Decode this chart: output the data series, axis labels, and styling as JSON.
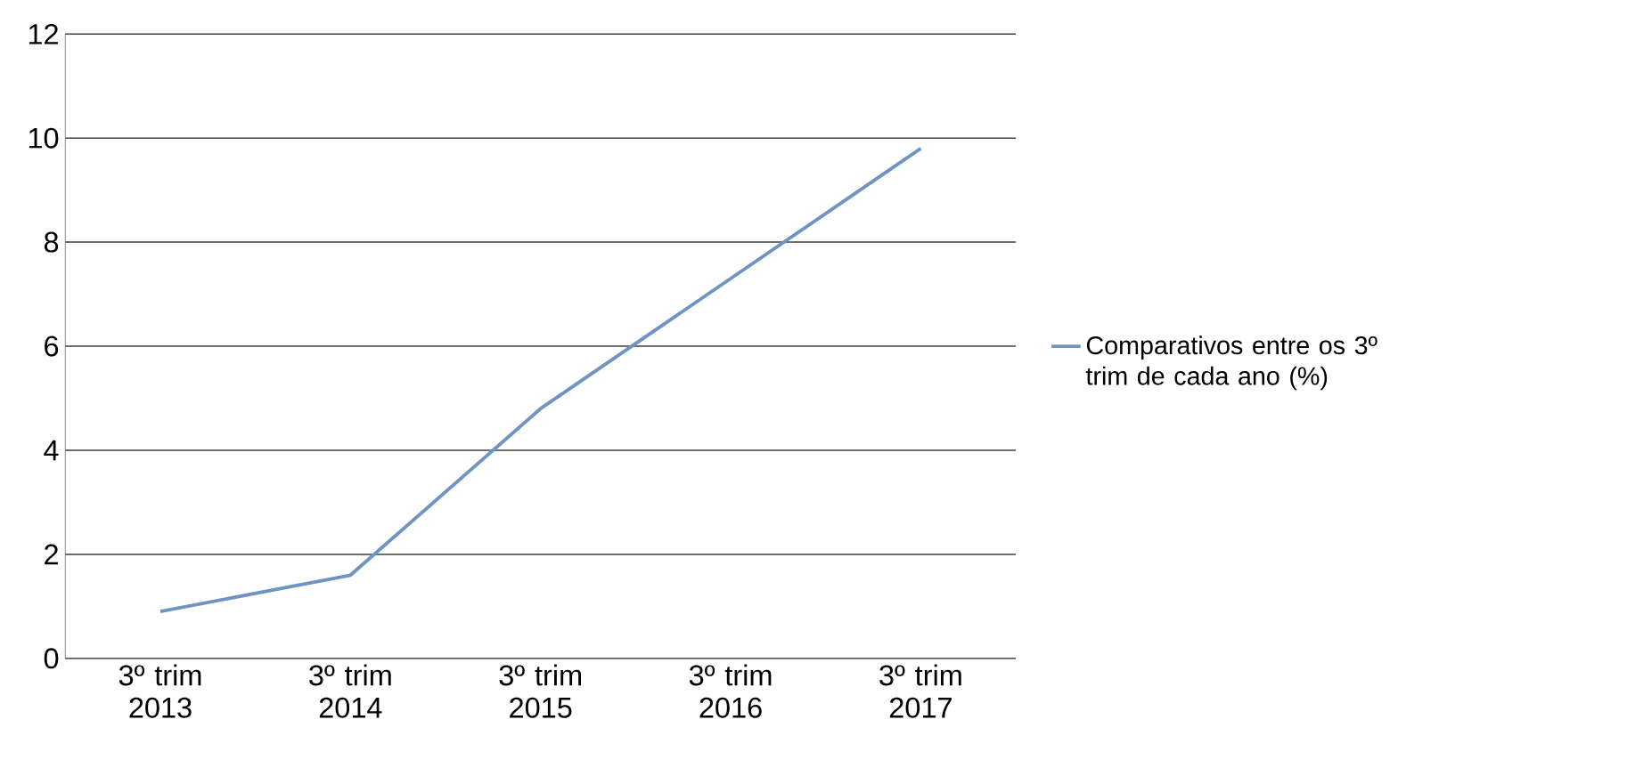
{
  "chart_data": {
    "type": "line",
    "categories": [
      "3º trim 2013",
      "3º trim 2014",
      "3º trim 2015",
      "3º trim 2016",
      "3º trim 2017"
    ],
    "series": [
      {
        "name": "Comparativos entre os 3º trim de cada ano (%)",
        "color": "#6f93c3",
        "values": [
          0.9,
          1.6,
          4.8,
          7.3,
          9.8
        ]
      }
    ],
    "ylim": [
      0,
      12
    ],
    "yticks": [
      0,
      2,
      4,
      6,
      8,
      10,
      12
    ],
    "grid": "y",
    "legend": "right",
    "marker": "none",
    "line_style": "solid"
  }
}
